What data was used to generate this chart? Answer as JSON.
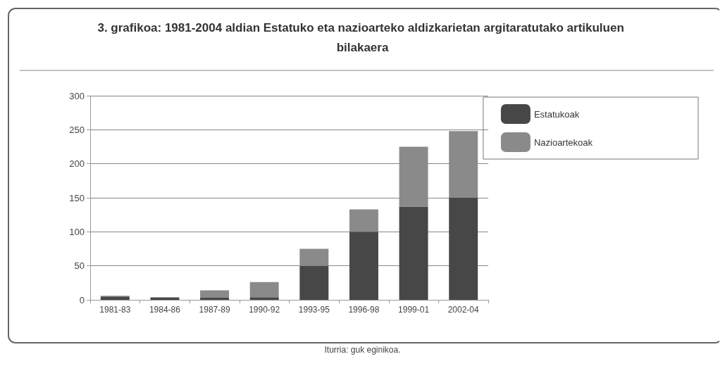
{
  "chart_data": {
    "type": "bar",
    "title": "3. grafikoa: 1981-2004 aldian Estatuko eta nazioarteko aldizkarietan argitaratutako artikuluen bilakaera",
    "categories": [
      "1981-83",
      "1984-86",
      "1987-89",
      "1990-92",
      "1993-95",
      "1996-98",
      "1999-01",
      "2002-04"
    ],
    "series": [
      {
        "name": "Estatukoak",
        "color": "#474747",
        "values": [
          5,
          3,
          3,
          4,
          50,
          100,
          137,
          150
        ]
      },
      {
        "name": "Nazioartekoak",
        "color": "#8a8a8a",
        "values": [
          1,
          1,
          11,
          22,
          25,
          33,
          88,
          98
        ]
      }
    ],
    "stacked": true,
    "ylim": [
      0,
      300
    ],
    "yticks": [
      0,
      50,
      100,
      150,
      200,
      250,
      300
    ],
    "grid": "y",
    "legend": "right",
    "annotations": [
      "Iturria: guk eginikoa."
    ]
  }
}
